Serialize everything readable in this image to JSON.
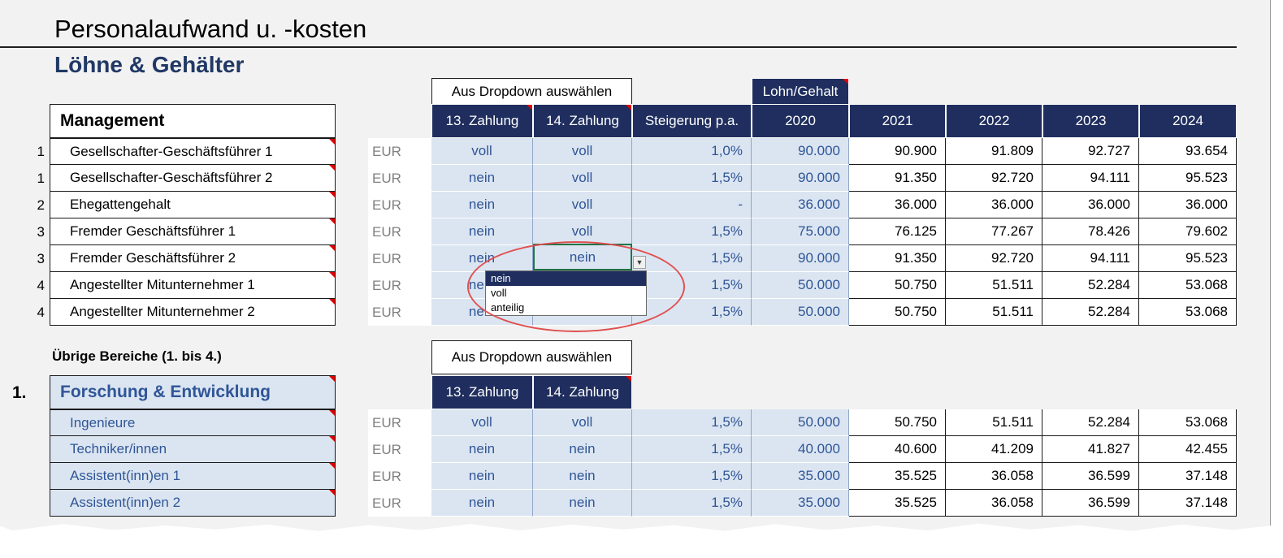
{
  "title": "Personalaufwand u. -kosten",
  "subtitle": "Löhne & Gehälter",
  "colors": {
    "header_bg": "#1f2e5e",
    "input_bg": "#dbe5f1",
    "input_text": "#2f5597",
    "comment_marker": "#e00000",
    "highlight_ellipse": "#e05050"
  },
  "dropdown_note": "Aus Dropdown auswählen",
  "input_year_tag": "Lohn/Gehalt",
  "columns": {
    "z13": "13. Zahlung",
    "z14": "14. Zahlung",
    "increase": "Steigerung p.a.",
    "years": [
      "2020",
      "2021",
      "2022",
      "2023",
      "2024"
    ]
  },
  "management": {
    "heading": "Management",
    "rows": [
      {
        "num": "1",
        "label": "Gesellschafter-Geschäftsführer 1",
        "currency": "EUR",
        "z13": "voll",
        "z14": "voll",
        "increase": "1,0%",
        "values": [
          "90.000",
          "90.900",
          "91.809",
          "92.727",
          "93.654"
        ]
      },
      {
        "num": "1",
        "label": "Gesellschafter-Geschäftsführer 2",
        "currency": "EUR",
        "z13": "nein",
        "z14": "voll",
        "increase": "1,5%",
        "values": [
          "90.000",
          "91.350",
          "92.720",
          "94.111",
          "95.523"
        ]
      },
      {
        "num": "2",
        "label": "Ehegattengehalt",
        "currency": "EUR",
        "z13": "nein",
        "z14": "voll",
        "increase": "-",
        "values": [
          "36.000",
          "36.000",
          "36.000",
          "36.000",
          "36.000"
        ]
      },
      {
        "num": "3",
        "label": "Fremder Geschäftsführer 1",
        "currency": "EUR",
        "z13": "nein",
        "z14": "voll",
        "increase": "1,5%",
        "values": [
          "75.000",
          "76.125",
          "77.267",
          "78.426",
          "79.602"
        ]
      },
      {
        "num": "3",
        "label": "Fremder Geschäftsführer 2",
        "currency": "EUR",
        "z13": "nein",
        "z14": "nein",
        "increase": "1,5%",
        "values": [
          "90.000",
          "91.350",
          "92.720",
          "94.111",
          "95.523"
        ]
      },
      {
        "num": "4",
        "label": "Angestellter Mitunternehmer 1",
        "currency": "EUR",
        "z13": "nein",
        "z14": "",
        "increase": "1,5%",
        "values": [
          "50.000",
          "50.750",
          "51.511",
          "52.284",
          "53.068"
        ]
      },
      {
        "num": "4",
        "label": "Angestellter Mitunternehmer 2",
        "currency": "EUR",
        "z13": "nein",
        "z14": "",
        "increase": "1,5%",
        "values": [
          "50.000",
          "50.750",
          "51.511",
          "52.284",
          "53.068"
        ]
      }
    ]
  },
  "dropdown": {
    "selected": "nein",
    "options": [
      "nein",
      "voll",
      "anteilig"
    ]
  },
  "other_areas": {
    "heading": "Übrige Bereiche (1. bis 4.)",
    "section_num": "1.",
    "section_title": "Forschung & Entwicklung",
    "rows": [
      {
        "label": "Ingenieure",
        "currency": "EUR",
        "z13": "voll",
        "z14": "voll",
        "increase": "1,5%",
        "values": [
          "50.000",
          "50.750",
          "51.511",
          "52.284",
          "53.068"
        ]
      },
      {
        "label": "Techniker/innen",
        "currency": "EUR",
        "z13": "nein",
        "z14": "nein",
        "increase": "1,5%",
        "values": [
          "40.000",
          "40.600",
          "41.209",
          "41.827",
          "42.455"
        ]
      },
      {
        "label": "Assistent(inn)en 1",
        "currency": "EUR",
        "z13": "nein",
        "z14": "nein",
        "increase": "1,5%",
        "values": [
          "35.000",
          "35.525",
          "36.058",
          "36.599",
          "37.148"
        ]
      },
      {
        "label": "Assistent(inn)en 2",
        "currency": "EUR",
        "z13": "nein",
        "z14": "nein",
        "increase": "1,5%",
        "values": [
          "35.000",
          "35.525",
          "36.058",
          "36.599",
          "37.148"
        ]
      }
    ]
  }
}
